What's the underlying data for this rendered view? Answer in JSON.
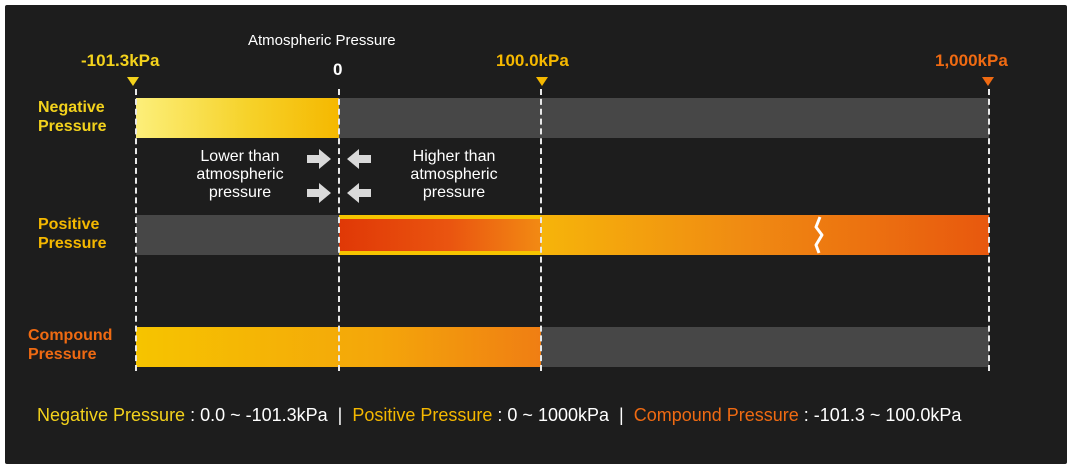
{
  "scale": {
    "min_label": "-101.3kPa",
    "zero_caption": "Atmospheric Pressure",
    "zero_label": "0",
    "mid_label": "100.0kPa",
    "max_label": "1,000kPa"
  },
  "rows": {
    "negative": {
      "line1": "Negative",
      "line2": "Pressure"
    },
    "positive": {
      "line1": "Positive",
      "line2": "Pressure"
    },
    "compound": {
      "line1": "Compound",
      "line2": "Pressure"
    }
  },
  "notes": {
    "lower": {
      "line1": "Lower than",
      "line2": "atmospheric",
      "line3": "pressure"
    },
    "higher": {
      "line1": "Higher than",
      "line2": "atmospheric",
      "line3": "pressure"
    }
  },
  "legend": {
    "negative_name": "Negative Pressure",
    "negative_range": " : 0.0 ~ -101.3kPa",
    "sep1": "  |  ",
    "positive_name": "Positive Pressure",
    "positive_range": " : 0 ~ 1000kPa",
    "sep2": "  |  ",
    "compound_name": "Compound Pressure",
    "compound_range": " : -101.3 ~ 100.0kPa"
  },
  "colors": {
    "yellow": "#f3d21c",
    "gold": "#f5b800",
    "orange": "#ef6a12",
    "track": "#474747"
  },
  "icons": [
    "triangle-marker-icon",
    "right-arrow-icon",
    "left-arrow-icon",
    "break-mark-icon"
  ]
}
